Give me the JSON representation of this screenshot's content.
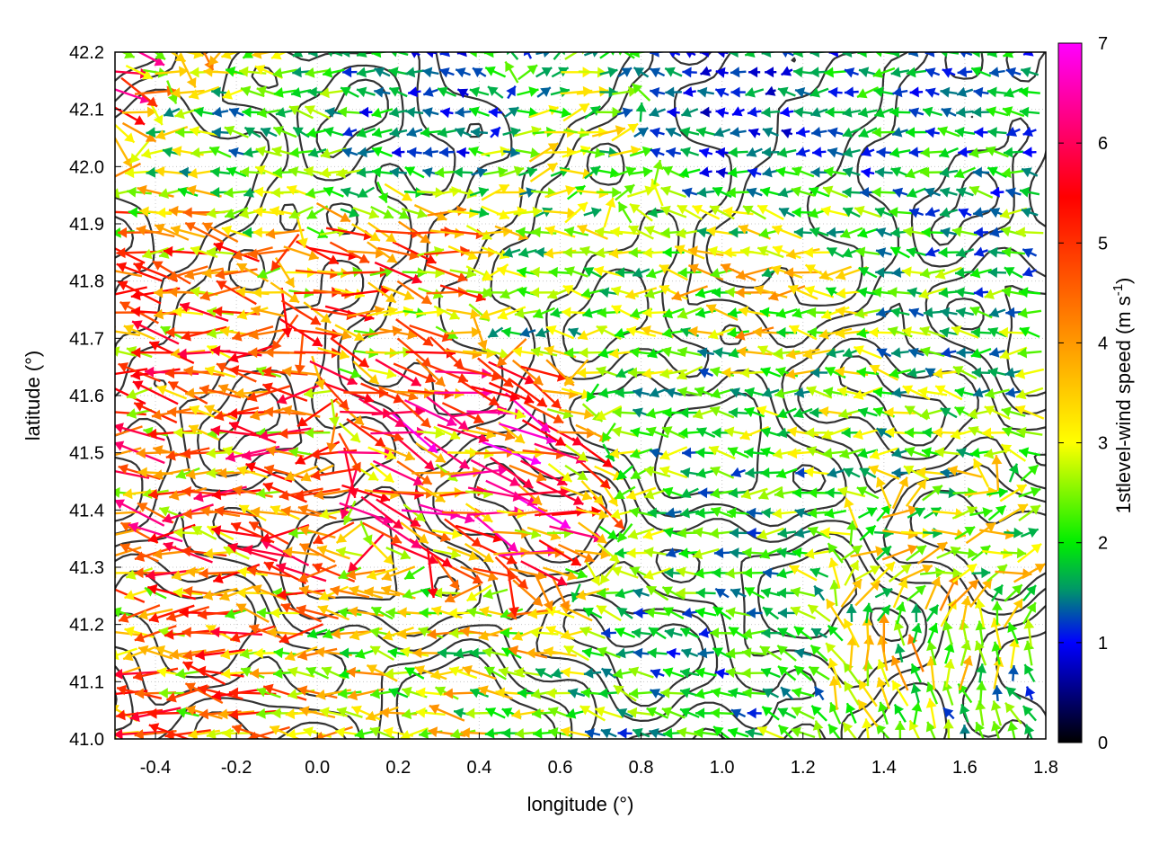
{
  "chart_data": {
    "type": "vector-field-with-contours",
    "xlabel": "longitude (°)",
    "ylabel": "latitude (°)",
    "colorbar_label": "1stlevel-wind speed (m s-1)",
    "colorbar_label_main": "1stlevel-wind speed (m s",
    "colorbar_label_sup": "-1",
    "colorbar_label_end": ")",
    "xlim": [
      -0.5,
      1.8
    ],
    "ylim": [
      41.0,
      42.2
    ],
    "xticks": [
      "-0.4",
      "-0.2",
      "0.0",
      "0.2",
      "0.4",
      "0.6",
      "0.8",
      "1.0",
      "1.2",
      "1.4",
      "1.6",
      "1.8"
    ],
    "xtick_values": [
      -0.4,
      -0.2,
      0.0,
      0.2,
      0.4,
      0.6,
      0.8,
      1.0,
      1.2,
      1.4,
      1.6,
      1.8
    ],
    "yticks": [
      "41.0",
      "41.1",
      "41.2",
      "41.3",
      "41.4",
      "41.5",
      "41.6",
      "41.7",
      "41.8",
      "41.9",
      "42.0",
      "42.1",
      "42.2"
    ],
    "ytick_values": [
      41.0,
      41.1,
      41.2,
      41.3,
      41.4,
      41.5,
      41.6,
      41.7,
      41.8,
      41.9,
      42.0,
      42.1,
      42.2
    ],
    "colorbar_range": [
      0,
      7
    ],
    "colorbar_ticks": [
      "0",
      "1",
      "2",
      "3",
      "4",
      "5",
      "6",
      "7"
    ],
    "colorbar_tick_values": [
      0,
      1,
      2,
      3,
      4,
      5,
      6,
      7
    ],
    "colorbar_palette": [
      "#000000",
      "#0000ff",
      "#009966",
      "#00ee00",
      "#ffff00",
      "#ff9900",
      "#ff0000",
      "#ff00ff"
    ],
    "grid": true,
    "contour_color": "#333333",
    "vector_sample": [
      {
        "lon": -0.45,
        "lat": 42.15,
        "u": 3.8,
        "v": -1.0,
        "speed": 4.5
      },
      {
        "lon": -0.3,
        "lat": 42.1,
        "u": -2.2,
        "v": 0.0,
        "speed": 2.2
      },
      {
        "lon": -0.1,
        "lat": 42.05,
        "u": -1.8,
        "v": 0.2,
        "speed": 2.0
      },
      {
        "lon": 0.3,
        "lat": 42.1,
        "u": -1.2,
        "v": 0.1,
        "speed": 1.3
      },
      {
        "lon": 0.6,
        "lat": 42.05,
        "u": 1.5,
        "v": 0.3,
        "speed": 2.5
      },
      {
        "lon": 1.0,
        "lat": 42.1,
        "u": -1.0,
        "v": 0.0,
        "speed": 1.2
      },
      {
        "lon": 1.5,
        "lat": 42.1,
        "u": -1.5,
        "v": 0.0,
        "speed": 1.6
      },
      {
        "lon": -0.4,
        "lat": 41.8,
        "u": -3.5,
        "v": 0.4,
        "speed": 4.0
      },
      {
        "lon": 0.2,
        "lat": 41.8,
        "u": 3.0,
        "v": -0.7,
        "speed": 4.0
      },
      {
        "lon": 0.6,
        "lat": 41.75,
        "u": -2.0,
        "v": 0.1,
        "speed": 2.2
      },
      {
        "lon": 1.1,
        "lat": 41.75,
        "u": -2.6,
        "v": 0.2,
        "speed": 3.0
      },
      {
        "lon": 1.6,
        "lat": 41.75,
        "u": -1.8,
        "v": 0.1,
        "speed": 2.0
      },
      {
        "lon": -0.4,
        "lat": 41.55,
        "u": -3.6,
        "v": 0.3,
        "speed": 4.2
      },
      {
        "lon": 0.45,
        "lat": 41.55,
        "u": 4.0,
        "v": -1.2,
        "speed": 5.0
      },
      {
        "lon": 0.9,
        "lat": 41.6,
        "u": -2.0,
        "v": 0.0,
        "speed": 2.2
      },
      {
        "lon": 1.5,
        "lat": 41.55,
        "u": -2.0,
        "v": 0.2,
        "speed": 2.3
      },
      {
        "lon": -0.3,
        "lat": 41.4,
        "u": -3.8,
        "v": 0.3,
        "speed": 4.5
      },
      {
        "lon": 0.45,
        "lat": 41.4,
        "u": 3.0,
        "v": -1.0,
        "speed": 4.8
      },
      {
        "lon": 1.0,
        "lat": 41.4,
        "u": -1.8,
        "v": 0.0,
        "speed": 2.0
      },
      {
        "lon": 1.6,
        "lat": 41.35,
        "u": 2.0,
        "v": 0.5,
        "speed": 3.0
      },
      {
        "lon": -0.4,
        "lat": 41.2,
        "u": -3.5,
        "v": 0.2,
        "speed": 4.0
      },
      {
        "lon": 0.3,
        "lat": 41.15,
        "u": -2.5,
        "v": 0.2,
        "speed": 3.0
      },
      {
        "lon": 0.9,
        "lat": 41.15,
        "u": -1.5,
        "v": 0.3,
        "speed": 1.8
      },
      {
        "lon": 1.6,
        "lat": 41.15,
        "u": 0.0,
        "v": 1.5,
        "speed": 3.0
      },
      {
        "lon": 1.7,
        "lat": 41.05,
        "u": -0.5,
        "v": 1.0,
        "speed": 1.8
      }
    ]
  }
}
